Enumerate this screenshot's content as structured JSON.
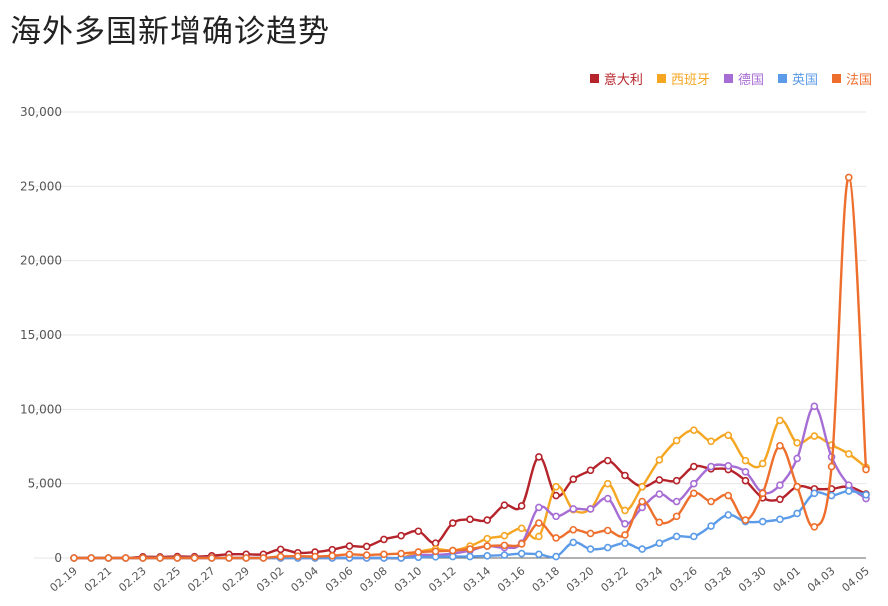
{
  "title": "海外多国新增确诊趋势",
  "chart_data": {
    "type": "line",
    "title": "海外多国新增确诊趋势",
    "xlabel": "",
    "ylabel": "",
    "ylim": [
      0,
      30000
    ],
    "yticks": [
      "0",
      "5,000",
      "10,000",
      "15,000",
      "20,000",
      "25,000",
      "30,000"
    ],
    "ytick_values": [
      0,
      5000,
      10000,
      15000,
      20000,
      25000,
      30000
    ],
    "xtick_labels": [
      "02.19",
      "02.21",
      "02.23",
      "02.25",
      "02.27",
      "02.29",
      "03.02",
      "03.04",
      "03.06",
      "03.08",
      "03.10",
      "03.12",
      "03.14",
      "03.16",
      "03.18",
      "03.20",
      "03.22",
      "03.24",
      "03.26",
      "03.28",
      "03.30",
      "04.01",
      "04.03",
      "04.05"
    ],
    "grid": true,
    "legend_position": "top-right",
    "categories": [
      "02.19",
      "02.20",
      "02.21",
      "02.22",
      "02.23",
      "02.24",
      "02.25",
      "02.26",
      "02.27",
      "02.28",
      "02.29",
      "03.01",
      "03.02",
      "03.03",
      "03.04",
      "03.05",
      "03.06",
      "03.07",
      "03.08",
      "03.09",
      "03.10",
      "03.11",
      "03.12",
      "03.13",
      "03.14",
      "03.15",
      "03.16",
      "03.17",
      "03.18",
      "03.19",
      "03.20",
      "03.21",
      "03.22",
      "03.23",
      "03.24",
      "03.25",
      "03.26",
      "03.27",
      "03.28",
      "03.29",
      "03.30",
      "03.31",
      "04.01",
      "04.02",
      "04.03",
      "04.04",
      "04.05"
    ],
    "series": [
      {
        "name": "意大利",
        "color": "#b5232b",
        "values": [
          0,
          0,
          0,
          0,
          80,
          70,
          100,
          90,
          150,
          250,
          250,
          250,
          580,
          350,
          400,
          560,
          800,
          780,
          1250,
          1500,
          1800,
          1000,
          2350,
          2600,
          2550,
          3550,
          3500,
          6800,
          4200,
          5300,
          5900,
          6550,
          5550,
          4800,
          5250,
          5200,
          6150,
          6000,
          5950,
          5200,
          4050,
          3950,
          4800,
          4650,
          4650,
          4800,
          4300
        ]
      },
      {
        "name": "西班牙",
        "color": "#f5a623",
        "values": [
          0,
          0,
          0,
          0,
          0,
          0,
          0,
          0,
          0,
          0,
          0,
          0,
          0,
          0,
          0,
          0,
          0,
          0,
          0,
          0,
          400,
          600,
          500,
          800,
          1300,
          1500,
          2000,
          1450,
          4800,
          3250,
          3300,
          5000,
          3200,
          4800,
          6600,
          7900,
          8600,
          7850,
          8250,
          6550,
          6350,
          9250,
          7750,
          8200,
          7600,
          7000,
          6100
        ]
      },
      {
        "name": "德国",
        "color": "#a66dd4",
        "values": [
          0,
          0,
          0,
          0,
          0,
          0,
          0,
          0,
          0,
          0,
          0,
          0,
          0,
          0,
          0,
          0,
          0,
          0,
          0,
          0,
          200,
          200,
          300,
          500,
          800,
          700,
          1000,
          3400,
          2800,
          3300,
          3300,
          4000,
          2300,
          3400,
          4300,
          3800,
          5000,
          6150,
          6200,
          5800,
          4400,
          4900,
          6700,
          10200,
          6800,
          4900,
          4000
        ]
      },
      {
        "name": "英国",
        "color": "#5b9be8",
        "values": [
          0,
          0,
          0,
          0,
          0,
          0,
          0,
          0,
          0,
          0,
          0,
          0,
          0,
          0,
          0,
          0,
          0,
          0,
          0,
          0,
          50,
          80,
          100,
          100,
          150,
          200,
          300,
          250,
          100,
          1050,
          600,
          700,
          1000,
          600,
          1000,
          1450,
          1450,
          2150,
          2900,
          2450,
          2450,
          2600,
          3000,
          4350,
          4200,
          4500,
          4250
        ]
      },
      {
        "name": "法国",
        "color": "#ee6f2d",
        "values": [
          0,
          0,
          0,
          0,
          0,
          0,
          0,
          0,
          0,
          0,
          0,
          0,
          100,
          120,
          100,
          150,
          250,
          200,
          250,
          300,
          400,
          450,
          500,
          600,
          800,
          850,
          950,
          2350,
          1350,
          1900,
          1650,
          1850,
          1550,
          3800,
          2400,
          2800,
          4350,
          3800,
          4200,
          2550,
          4350,
          7550,
          4800,
          2100,
          6150,
          25600,
          5950
        ]
      }
    ]
  }
}
